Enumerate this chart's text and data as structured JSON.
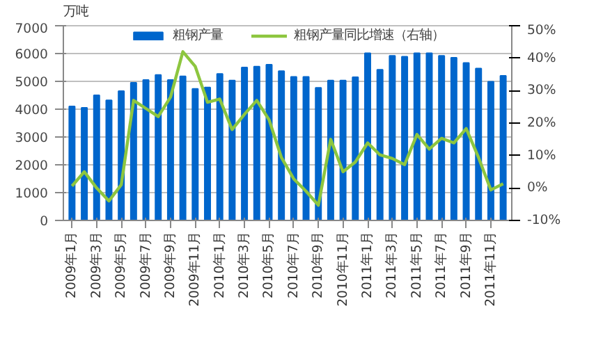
{
  "chart_data": {
    "type": "bar",
    "ylabel": "万吨",
    "categories": [
      "2009年1月",
      null,
      "2009年3月",
      null,
      "2009年5月",
      null,
      "2009年7月",
      null,
      "2009年9月",
      null,
      "2009年11月",
      null,
      "2010年1月",
      null,
      "2010年3月",
      null,
      "2010年5月",
      null,
      "2010年7月",
      null,
      "2010年9月",
      null,
      "2010年11月",
      null,
      "2011年1月",
      null,
      "2011年3月",
      null,
      "2011年5月",
      null,
      "2011年7月",
      null,
      "2011年9月",
      null,
      "2011年11月",
      null
    ],
    "series": [
      {
        "name": "粗钢产量",
        "color": "#0066cc",
        "values": [
          4100,
          4050,
          4500,
          4320,
          4650,
          4950,
          5050,
          5230,
          5050,
          5180,
          4730,
          4780,
          5270,
          5030,
          5500,
          5530,
          5600,
          5370,
          5160,
          5160,
          4770,
          5030,
          5030,
          5150,
          6010,
          5420,
          5920,
          5890,
          6010,
          6010,
          5920,
          5850,
          5660,
          5460,
          4990,
          5200
        ]
      },
      {
        "name": "粗钢产量同比增速（右轴）",
        "type": "line",
        "axis": "y2",
        "color": "#8dc63f",
        "values": [
          0.6,
          5,
          0,
          -4,
          1,
          27,
          24.5,
          22,
          28,
          42,
          37.5,
          26.4,
          27.4,
          18,
          22.7,
          27,
          21,
          9.4,
          2.8,
          -1,
          -5.3,
          15,
          5,
          8,
          13.9,
          10.2,
          9.1,
          7.2,
          16.5,
          12,
          15.3,
          13.9,
          18.3,
          9.4,
          -0.6,
          1.3
        ]
      }
    ],
    "ylim": [
      0,
      7000
    ],
    "yticks": [
      0,
      1000,
      2000,
      3000,
      4000,
      5000,
      6000,
      7000
    ],
    "y2lim": [
      -10,
      50
    ],
    "y2ticks": [
      {
        "value": -10,
        "label": "-10%"
      },
      {
        "value": 0,
        "label": "0%"
      },
      {
        "value": 10,
        "label": "10%"
      },
      {
        "value": 20,
        "label": "20%"
      },
      {
        "value": 30,
        "label": "30%"
      },
      {
        "value": 40,
        "label": "40%"
      },
      {
        "value": 50,
        "label": "50%"
      }
    ],
    "grid": "y",
    "legend": "top"
  }
}
